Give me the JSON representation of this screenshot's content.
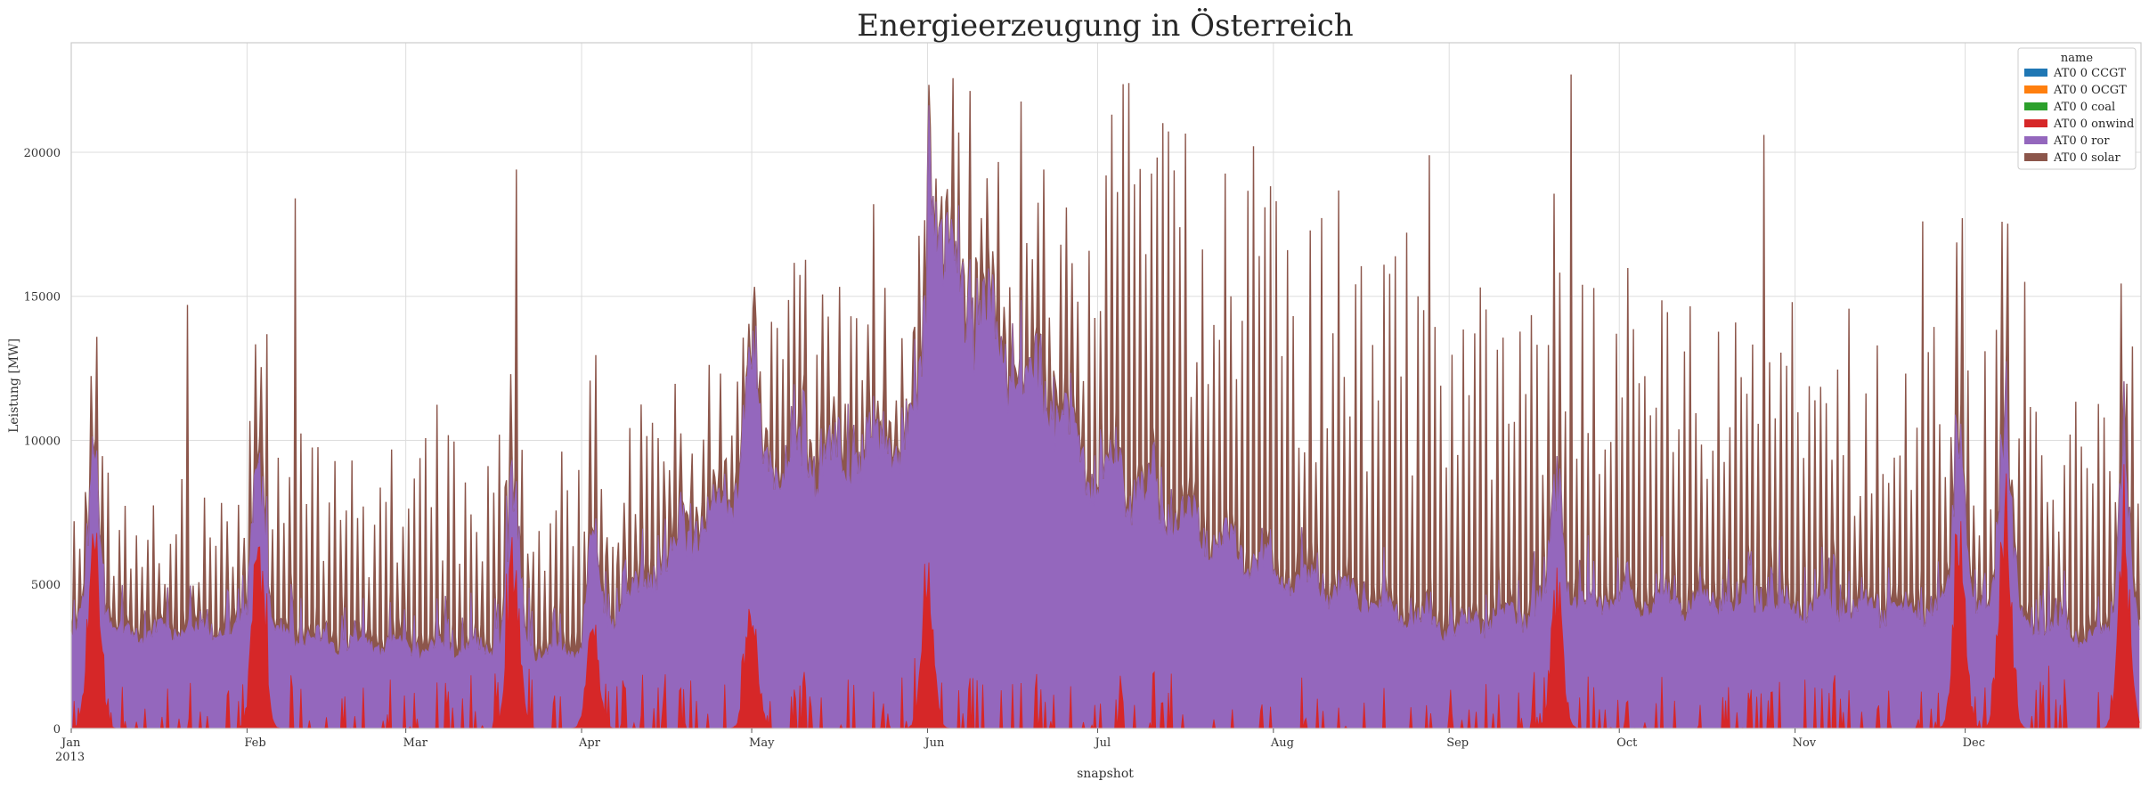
{
  "chart_data": {
    "type": "area",
    "stacked": true,
    "title": "Energieerzeugung in Österreich",
    "xlabel": "snapshot",
    "ylabel": "Leistung [MW]",
    "ylim": [
      0,
      23800
    ],
    "yticks": [
      0,
      5000,
      10000,
      15000,
      20000
    ],
    "ytick_labels": [
      "0",
      "5000",
      "10000",
      "15000",
      "20000"
    ],
    "x_domain": [
      "2013-01-01",
      "2013-12-31"
    ],
    "xtick_labels": [
      "Jan",
      "Feb",
      "Mar",
      "Apr",
      "May",
      "Jun",
      "Jul",
      "Aug",
      "Sep",
      "Oct",
      "Nov",
      "Dec"
    ],
    "xtick_dates": [
      "2013-01-01",
      "2013-02-01",
      "2013-03-01",
      "2013-04-01",
      "2013-05-01",
      "2013-06-01",
      "2013-07-01",
      "2013-08-01",
      "2013-09-01",
      "2013-10-01",
      "2013-11-01",
      "2013-12-01"
    ],
    "xtick_year_label": "2013",
    "grid": true,
    "legend_title": "name",
    "legend_position": "top-right",
    "series": [
      {
        "name": "AT0 0 CCGT",
        "color": "#1f77b4"
      },
      {
        "name": "AT0 0 OCGT",
        "color": "#ff7f0e"
      },
      {
        "name": "AT0 0 coal",
        "color": "#2ca02c"
      },
      {
        "name": "AT0 0 onwind",
        "color": "#d62728"
      },
      {
        "name": "AT0 0 ror",
        "color": "#9467bd"
      },
      {
        "name": "AT0 0 solar",
        "color": "#8c564b"
      }
    ],
    "ror_baseline_by_month": [
      {
        "month": "Jan",
        "start": 3200,
        "end": 3500
      },
      {
        "month": "Feb",
        "start": 3400,
        "end": 2800
      },
      {
        "month": "Mar",
        "start": 2800,
        "end": 2700
      },
      {
        "month": "Apr",
        "start": 2700,
        "end": 9000
      },
      {
        "month": "May",
        "start": 9000,
        "end": 10000
      },
      {
        "month": "Jun",
        "start": 16500,
        "end": 9000
      },
      {
        "month": "Jul",
        "start": 9000,
        "end": 5500
      },
      {
        "month": "Aug",
        "start": 5500,
        "end": 3500
      },
      {
        "month": "Sep",
        "start": 3500,
        "end": 4500
      },
      {
        "month": "Oct",
        "start": 4500,
        "end": 4300
      },
      {
        "month": "Nov",
        "start": 4300,
        "end": 4000
      },
      {
        "month": "Dec",
        "start": 4000,
        "end": 3000
      }
    ],
    "solar_daily_peak_by_month": [
      {
        "month": "Jan",
        "typical": 4500,
        "max": 14700
      },
      {
        "month": "Feb",
        "typical": 5500,
        "max": 18400
      },
      {
        "month": "Mar",
        "typical": 6000,
        "max": 19400
      },
      {
        "month": "Apr",
        "typical": 5500,
        "max": 14000
      },
      {
        "month": "May",
        "typical": 6500,
        "max": 18200
      },
      {
        "month": "Jun",
        "typical": 8000,
        "max": 19400
      },
      {
        "month": "Jul",
        "typical": 11500,
        "max": 22400
      },
      {
        "month": "Aug",
        "typical": 10500,
        "max": 19900
      },
      {
        "month": "Sep",
        "typical": 9500,
        "max": 22700
      },
      {
        "month": "Oct",
        "typical": 8500,
        "max": 20600
      },
      {
        "month": "Nov",
        "typical": 8000,
        "max": 17600
      },
      {
        "month": "Dec",
        "typical": 6500,
        "max": 15500
      }
    ],
    "onwind_peaks": [
      {
        "date": "2013-01-05",
        "value": 7900
      },
      {
        "date": "2013-02-03",
        "value": 7600
      },
      {
        "date": "2013-03-20",
        "value": 7400
      },
      {
        "date": "2013-04-03",
        "value": 4200
      },
      {
        "date": "2013-05-01",
        "value": 5200
      },
      {
        "date": "2013-06-01",
        "value": 5600
      },
      {
        "date": "2013-09-20",
        "value": 5700
      },
      {
        "date": "2013-11-30",
        "value": 7700
      },
      {
        "date": "2013-12-08",
        "value": 9000
      },
      {
        "date": "2013-12-29",
        "value": 7800
      }
    ],
    "ccgt_ocgt_coal_values": "≈0 throughout"
  }
}
